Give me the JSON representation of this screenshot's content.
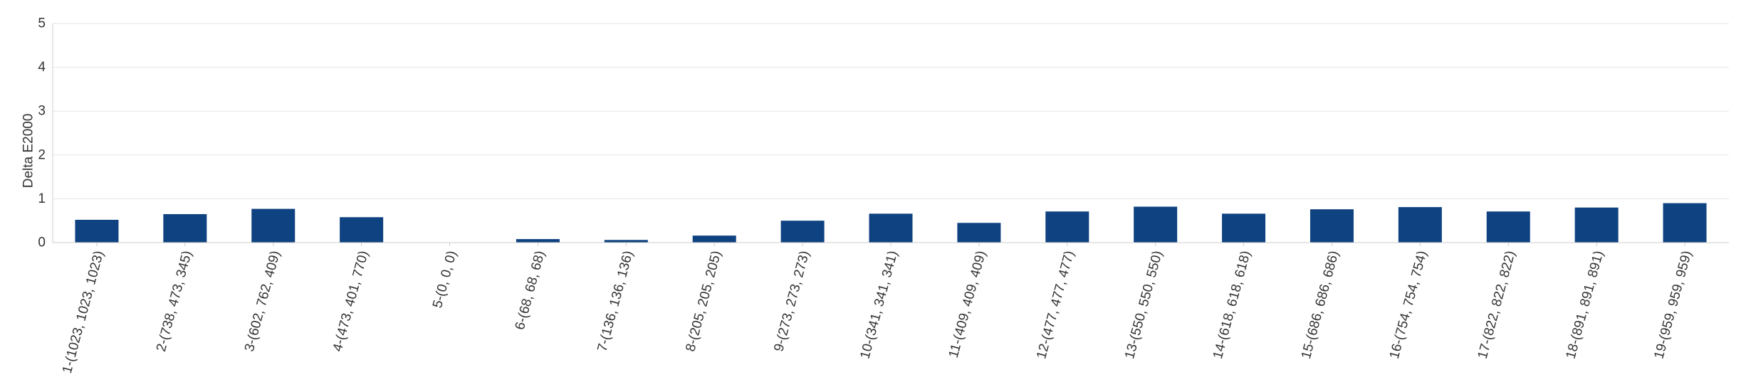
{
  "chart_data": {
    "type": "bar",
    "title": "",
    "xlabel": "",
    "ylabel": "Delta E2000",
    "ylim": [
      0,
      5
    ],
    "yticks": [
      0,
      1,
      2,
      3,
      4,
      5
    ],
    "grid": true,
    "legend": "none",
    "bar_color": "#0f4280",
    "grid_color": "#e6e6e6",
    "axis_color": "#cccccc",
    "categories": [
      "1-(1023, 1023, 1023)",
      "2-(738, 473, 345)",
      "3-(602, 762, 409)",
      "4-(473, 401, 770)",
      "5-(0, 0, 0)",
      "6-(68, 68, 68)",
      "7-(136, 136, 136)",
      "8-(205, 205, 205)",
      "9-(273, 273, 273)",
      "10-(341, 341, 341)",
      "11-(409, 409, 409)",
      "12-(477, 477, 477)",
      "13-(550, 550, 550)",
      "14-(618, 618, 618)",
      "15-(686, 686, 686)",
      "16-(754, 754, 754)",
      "17-(822, 822, 822)",
      "18-(891, 891, 891)",
      "19-(959, 959, 959)"
    ],
    "values": [
      0.52,
      0.65,
      0.77,
      0.58,
      0.0,
      0.08,
      0.06,
      0.16,
      0.5,
      0.66,
      0.45,
      0.71,
      0.82,
      0.66,
      0.76,
      0.81,
      0.71,
      0.8,
      0.9
    ]
  }
}
